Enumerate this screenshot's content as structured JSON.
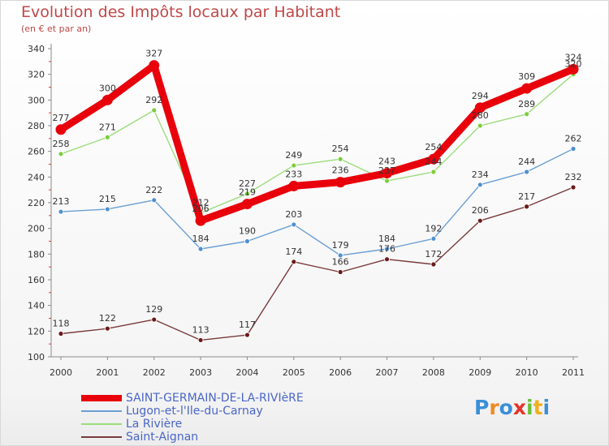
{
  "header": {
    "title": "Evolution des Impôts locaux par Habitant",
    "subtitle": "(en € et par an)"
  },
  "logo": {
    "text": "Proxiti",
    "letter_colors": [
      "#3a8fd8",
      "#f08a24",
      "#3a8fd8",
      "#e4332a",
      "#6bbf3a",
      "#f0b020",
      "#3a8fd8"
    ]
  },
  "chart_data": {
    "type": "line",
    "title": "Evolution des Impôts locaux par Habitant",
    "subtitle": "(en € et par an)",
    "x": [
      "2000",
      "2001",
      "2002",
      "2003",
      "2004",
      "2005",
      "2006",
      "2007",
      "2008",
      "2009",
      "2010",
      "2011"
    ],
    "ylim": [
      100,
      340
    ],
    "yticks": [
      100,
      120,
      140,
      160,
      180,
      200,
      220,
      240,
      260,
      280,
      300,
      320,
      340
    ],
    "grid": false,
    "legend_position": "bottom-left",
    "series": [
      {
        "name": "SAINT-GERMAIN-DE-LA-RIVIèRE",
        "color": "#e8000b",
        "marker": "#e8000b",
        "emphasis": true,
        "values": [
          277,
          300,
          327,
          206,
          219,
          233,
          236,
          243,
          254,
          294,
          309,
          324
        ]
      },
      {
        "name": "Lugon-et-l'Ile-du-Carnay",
        "color": "#6a9fd4",
        "marker": "#4f8fd0",
        "emphasis": false,
        "values": [
          213,
          215,
          222,
          184,
          190,
          203,
          179,
          184,
          192,
          234,
          244,
          262
        ]
      },
      {
        "name": "La Rivière",
        "color": "#9bdd7a",
        "marker": "#7ccd3c",
        "emphasis": false,
        "values": [
          258,
          271,
          292,
          212,
          227,
          249,
          254,
          237,
          244,
          280,
          289,
          320
        ]
      },
      {
        "name": "Saint-Aignan",
        "color": "#7a3a3a",
        "marker": "#6a1a1a",
        "emphasis": false,
        "values": [
          118,
          122,
          129,
          113,
          117,
          174,
          166,
          176,
          172,
          206,
          217,
          232
        ]
      }
    ]
  }
}
